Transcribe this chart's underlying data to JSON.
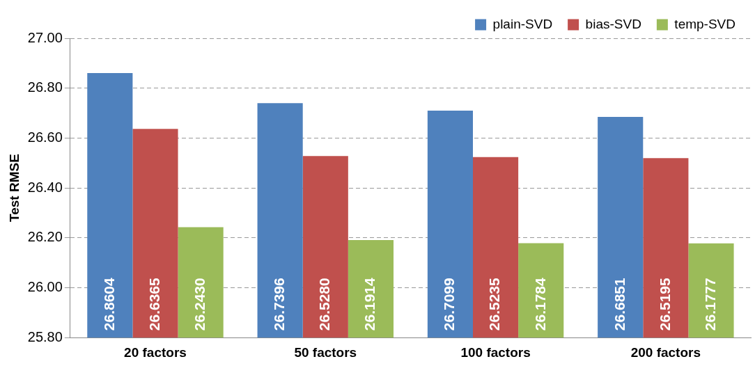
{
  "chart_data": {
    "type": "bar",
    "ylabel": "Test RMSE",
    "categories": [
      "20 factors",
      "50 factors",
      "100 factors",
      "200 factors"
    ],
    "series": [
      {
        "name": "plain-SVD",
        "color": "#4f81bd",
        "values": [
          26.8604,
          26.7396,
          26.7099,
          26.6851
        ],
        "value_labels": [
          "26.8604",
          "26.7396",
          "26.7099",
          "26.6851"
        ]
      },
      {
        "name": "bias-SVD",
        "color": "#c0504d",
        "values": [
          26.6365,
          26.528,
          26.5235,
          26.5195
        ],
        "value_labels": [
          "26.6365",
          "26.5280",
          "26.5235",
          "26.5195"
        ]
      },
      {
        "name": "temp-SVD",
        "color": "#9bbb59",
        "values": [
          26.243,
          26.1914,
          26.1784,
          26.1777
        ],
        "value_labels": [
          "26.2430",
          "26.1914",
          "26.1784",
          "26.1777"
        ]
      }
    ],
    "ylim": [
      25.8,
      27.0
    ],
    "yticks": [
      {
        "value": 25.8,
        "label": "25.80"
      },
      {
        "value": 26.0,
        "label": "26.00"
      },
      {
        "value": 26.2,
        "label": "26.20"
      },
      {
        "value": 26.4,
        "label": "26.40"
      },
      {
        "value": 26.6,
        "label": "26.60"
      },
      {
        "value": 26.8,
        "label": "26.80"
      },
      {
        "value": 27.0,
        "label": "27.00"
      }
    ],
    "grid": "y",
    "legend": "top right"
  }
}
